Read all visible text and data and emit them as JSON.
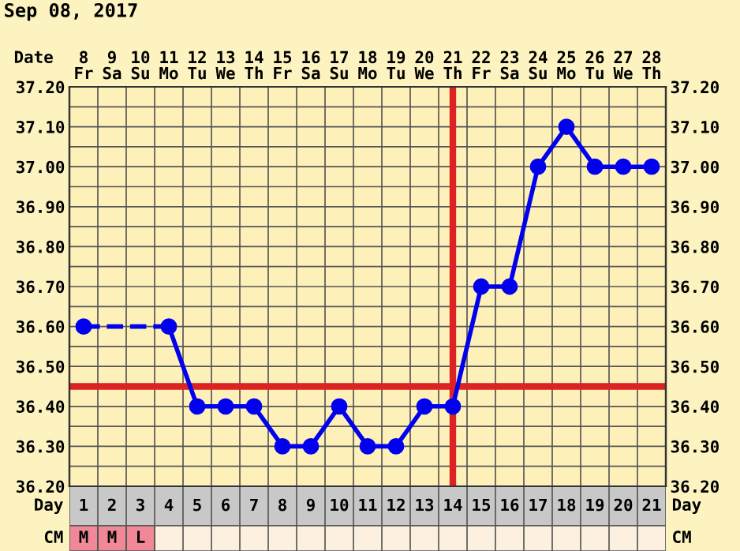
{
  "chart_data": {
    "type": "line",
    "title": "Sep 08, 2017",
    "xlabel": "Day",
    "x2label": "Date",
    "x": [
      1,
      2,
      3,
      4,
      5,
      6,
      7,
      8,
      9,
      10,
      11,
      12,
      13,
      14,
      15,
      16,
      17,
      18,
      19,
      20,
      21
    ],
    "xlim": [
      0.5,
      21.5
    ],
    "xticks": [
      1,
      2,
      3,
      4,
      5,
      6,
      7,
      8,
      9,
      10,
      11,
      12,
      13,
      14,
      15,
      16,
      17,
      18,
      19,
      20,
      21
    ],
    "x2lim": [
      7.5,
      28.5
    ],
    "x2ticks": [
      {
        "value": 8,
        "label": "8\nFr"
      },
      {
        "value": 9,
        "label": "9\nSa"
      },
      {
        "value": 10,
        "label": "10\nSu"
      },
      {
        "value": 11,
        "label": "11\nMo"
      },
      {
        "value": 12,
        "label": "12\nTu"
      },
      {
        "value": 13,
        "label": "13\nWe"
      },
      {
        "value": 14,
        "label": "14\nTh"
      },
      {
        "value": 15,
        "label": "15\nFr"
      },
      {
        "value": 16,
        "label": "16\nSa"
      },
      {
        "value": 17,
        "label": "17\nSu"
      },
      {
        "value": 18,
        "label": "18\nMo"
      },
      {
        "value": 19,
        "label": "19\nTu"
      },
      {
        "value": 20,
        "label": "20\nWe"
      },
      {
        "value": 21,
        "label": "21\nTh"
      },
      {
        "value": 22,
        "label": "22\nFr"
      },
      {
        "value": 23,
        "label": "23\nSa"
      },
      {
        "value": 24,
        "label": "24\nSu"
      },
      {
        "value": 25,
        "label": "25\nMo"
      },
      {
        "value": 26,
        "label": "26\nTu"
      },
      {
        "value": 27,
        "label": "27\nWe"
      },
      {
        "value": 28,
        "label": "28\nTh"
      }
    ],
    "ylim": [
      36.2,
      37.2
    ],
    "yticks": [
      {
        "value": 36.2,
        "label": "36.20"
      },
      {
        "value": 36.25,
        "label": null
      },
      {
        "value": 36.3,
        "label": "36.30"
      },
      {
        "value": 36.35,
        "label": null
      },
      {
        "value": 36.4,
        "label": "36.40"
      },
      {
        "value": 36.5,
        "label": "36.50"
      },
      {
        "value": 36.55,
        "label": null
      },
      {
        "value": 36.6,
        "label": "36.60"
      },
      {
        "value": 36.65,
        "label": null
      },
      {
        "value": 36.7,
        "label": "36.70"
      },
      {
        "value": 36.75,
        "label": null
      },
      {
        "value": 36.8,
        "label": "36.80"
      },
      {
        "value": 36.85,
        "label": null
      },
      {
        "value": 36.9,
        "label": "36.90"
      },
      {
        "value": 36.95,
        "label": null
      },
      {
        "value": 37.0,
        "label": "37.00"
      },
      {
        "value": 37.05,
        "label": null
      },
      {
        "value": 37.1,
        "label": "37.10"
      },
      {
        "value": 37.15,
        "label": null
      },
      {
        "value": 37.2,
        "label": "37.20"
      }
    ],
    "y2lim": [
      36.2,
      37.2
    ],
    "y2ticks": [
      {
        "value": 36.2,
        "label": "36.20"
      },
      {
        "value": 36.3,
        "label": "36.30"
      },
      {
        "value": 36.4,
        "label": "36.40"
      },
      {
        "value": 36.5,
        "label": "36.50"
      },
      {
        "value": 36.6,
        "label": "36.60"
      },
      {
        "value": 36.7,
        "label": "36.70"
      },
      {
        "value": 36.8,
        "label": "36.80"
      },
      {
        "value": 36.9,
        "label": "36.90"
      },
      {
        "value": 37.0,
        "label": "37.00"
      },
      {
        "value": 37.1,
        "label": "37.10"
      },
      {
        "value": 37.2,
        "label": "37.20"
      }
    ],
    "series": [
      {
        "color": "#0000ee",
        "values": [
          36.6,
          null,
          null,
          36.6,
          36.4,
          36.4,
          36.4,
          36.3,
          36.3,
          36.4,
          36.3,
          36.3,
          36.4,
          36.4,
          36.7,
          36.7,
          37.0,
          37.1,
          37.0,
          37.0,
          37.0
        ]
      }
    ],
    "marker": "circle",
    "line_style": "solid",
    "grid": true,
    "ref_lines": [
      {
        "axis": "y",
        "value": 36.45,
        "color": "#dd2222"
      },
      {
        "axis": "x",
        "value": 14,
        "color": "#dd2222"
      }
    ],
    "annotations": [
      "CM",
      "M",
      "M",
      "L"
    ]
  }
}
